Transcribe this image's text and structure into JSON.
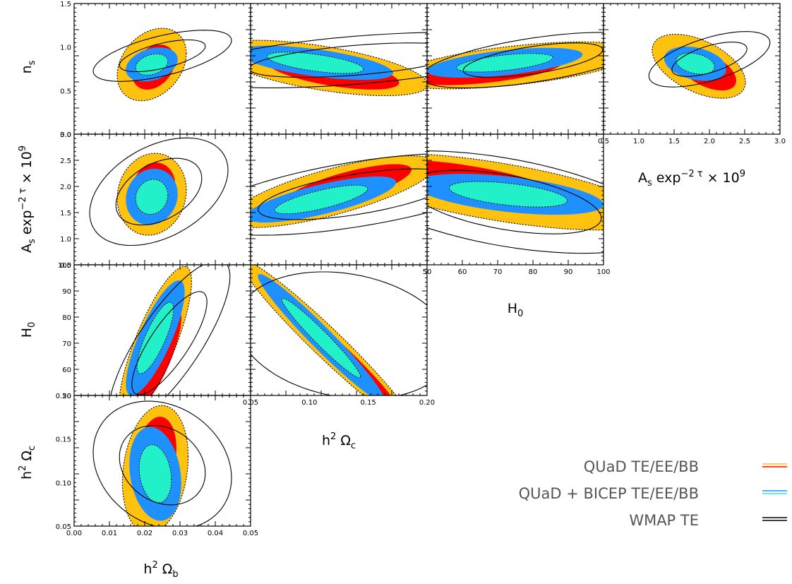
{
  "chart_data": {
    "type": "contour",
    "colors": {
      "quad_outer": "#FFC20E",
      "quad_inner": "#FF0000",
      "combined_outer": "#1E90FF",
      "combined_inner": "#22F0C8",
      "wmap": "#000000"
    },
    "legend": {
      "placement": "bottom-right",
      "entries": [
        {
          "label": "QUaD TE/EE/BB",
          "colors": [
            "#FFC20E",
            "#FF0000"
          ]
        },
        {
          "label": "QUaD + BICEP TE/EE/BB",
          "colors": [
            "#1E90FF",
            "#22F0C8"
          ]
        },
        {
          "label": "WMAP TE",
          "colors": [
            "#000000",
            "#000000"
          ]
        }
      ]
    },
    "parameters": {
      "ob": {
        "label_main": "h",
        "label_sup": "2",
        "label_greek": "Ω",
        "label_sub": "b",
        "range": [
          0.0,
          0.05
        ],
        "ticks": [
          "0.00",
          "0.01",
          "0.02",
          "0.03",
          "0.04",
          "0.05"
        ]
      },
      "oc": {
        "label_main": "h",
        "label_sup": "2",
        "label_greek": "Ω",
        "label_sub": "c",
        "range": [
          0.05,
          0.2
        ],
        "ticks": [
          "0.05",
          "0.10",
          "0.15",
          "0.20"
        ]
      },
      "h0": {
        "label_main": "H",
        "label_sub": "0",
        "range": [
          50,
          100
        ],
        "ticks": [
          "50",
          "60",
          "70",
          "80",
          "90",
          "100"
        ]
      },
      "as": {
        "label_main": "A",
        "label_sub": "s",
        "label_rest": " exp",
        "label_sup": "−2 τ",
        "label_tail": " × 10",
        "label_sup2": "9",
        "range": [
          0.5,
          3.0
        ],
        "ticks": [
          "0.5",
          "1.0",
          "1.5",
          "2.0",
          "2.5",
          "3.0"
        ]
      },
      "ns": {
        "label_main": "n",
        "label_sub": "s",
        "range": [
          0.0,
          1.5
        ],
        "ticks": [
          "0.0",
          "0.5",
          "1.0",
          "1.5"
        ]
      }
    },
    "panels": [
      {
        "id": "ns-ob",
        "x": "ob",
        "y": "ns",
        "quad": {
          "center": [
            0.022,
            0.8
          ],
          "sx": 0.004,
          "sy": 0.17,
          "rho": 0.3,
          "shift68": [
            0.0005,
            -0.03
          ]
        },
        "combined": {
          "center": [
            0.022,
            0.8
          ],
          "sx": 0.003,
          "sy": 0.08,
          "rho": 0.3
        },
        "wmap": {
          "center": [
            0.025,
            0.9
          ],
          "sx": 0.008,
          "sy": 0.12,
          "rho": 0.6
        }
      },
      {
        "id": "ns-oc",
        "x": "oc",
        "y": "ns",
        "quad": {
          "center": [
            0.11,
            0.76
          ],
          "sx": 0.037,
          "sy": 0.13,
          "rho": -0.6,
          "shift68": [
            0.01,
            -0.05
          ]
        },
        "combined": {
          "center": [
            0.105,
            0.82
          ],
          "sx": 0.027,
          "sy": 0.08,
          "rho": -0.6
        },
        "wmap": {
          "center": [
            0.14,
            0.85
          ],
          "sx": 0.06,
          "sy": 0.13,
          "rho": 0.5
        }
      },
      {
        "id": "ns-h0",
        "x": "h0",
        "y": "ns",
        "quad": {
          "center": [
            75,
            0.79
          ],
          "sx": 14,
          "sy": 0.11,
          "rho": 0.55,
          "shift68": [
            -8,
            -0.06
          ]
        },
        "combined": {
          "center": [
            72,
            0.82
          ],
          "sx": 9,
          "sy": 0.07,
          "rho": 0.55
        },
        "wmap": {
          "center": [
            80,
            0.85
          ],
          "sx": 13,
          "sy": 0.13,
          "rho": 0.6
        }
      },
      {
        "id": "ns-as",
        "x": "as",
        "y": "ns",
        "quad": {
          "center": [
            1.85,
            0.78
          ],
          "sx": 0.27,
          "sy": 0.15,
          "rho": -0.5,
          "shift68": [
            0.12,
            -0.05
          ]
        },
        "combined": {
          "center": [
            1.8,
            0.81
          ],
          "sx": 0.18,
          "sy": 0.08,
          "rho": -0.3
        },
        "wmap": {
          "center": [
            2.0,
            0.86
          ],
          "sx": 0.35,
          "sy": 0.13,
          "rho": 0.6
        }
      },
      {
        "id": "as-ob",
        "x": "ob",
        "y": "as",
        "quad": {
          "center": [
            0.022,
            1.85
          ],
          "sx": 0.004,
          "sy": 0.32,
          "rho": 0.1,
          "shift68": [
            0.0006,
            0.12
          ]
        },
        "combined": {
          "center": [
            0.022,
            1.8
          ],
          "sx": 0.003,
          "sy": 0.22,
          "rho": 0.1
        },
        "wmap": {
          "center": [
            0.024,
            1.9
          ],
          "sx": 0.008,
          "sy": 0.42,
          "rho": 0.4
        }
      },
      {
        "id": "as-oc",
        "x": "oc",
        "y": "as",
        "quad": {
          "center": [
            0.12,
            1.9
          ],
          "sx": 0.036,
          "sy": 0.28,
          "rho": 0.75,
          "shift68": [
            0.012,
            0.1
          ]
        },
        "combined": {
          "center": [
            0.11,
            1.75
          ],
          "sx": 0.026,
          "sy": 0.18,
          "rho": 0.75
        },
        "wmap": {
          "center": [
            0.14,
            1.85
          ],
          "sx": 0.055,
          "sy": 0.32,
          "rho": 0.6
        }
      },
      {
        "id": "as-h0",
        "x": "h0",
        "y": "as",
        "quad": {
          "center": [
            70,
            1.9
          ],
          "sx": 18,
          "sy": 0.3,
          "rho": -0.65,
          "shift68": [
            -8,
            0.15
          ]
        },
        "combined": {
          "center": [
            73,
            1.85
          ],
          "sx": 11,
          "sy": 0.16,
          "rho": -0.5
        },
        "wmap": {
          "center": [
            72,
            1.7
          ],
          "sx": 18,
          "sy": 0.4,
          "rho": -0.5
        }
      },
      {
        "id": "h0-ob",
        "x": "ob",
        "y": "h0",
        "quad": {
          "center": [
            0.023,
            70
          ],
          "sx": 0.0042,
          "sy": 12,
          "rho": 0.8,
          "shift68": [
            0.001,
            -5
          ]
        },
        "combined": {
          "center": [
            0.023,
            72
          ],
          "sx": 0.0034,
          "sy": 9,
          "rho": 0.8
        },
        "wmap": {
          "center": [
            0.027,
            70
          ],
          "sx": 0.007,
          "sy": 13,
          "rho": 0.8
        }
      },
      {
        "id": "h0-oc",
        "x": "oc",
        "y": "h0",
        "quad": {
          "center": [
            0.115,
            70
          ],
          "sx": 0.03,
          "sy": 13,
          "rho": -0.97,
          "shift68": [
            0.015,
            -6
          ]
        },
        "combined": {
          "center": [
            0.11,
            72
          ],
          "sx": 0.022,
          "sy": 10,
          "rho": -0.97
        },
        "wmap": {
          "center": [
            0.13,
            73
          ],
          "sx": 0.06,
          "sy": 16,
          "rho": -0.2
        }
      },
      {
        "id": "oc-ob",
        "x": "ob",
        "y": "oc",
        "quad": {
          "center": [
            0.023,
            0.115
          ],
          "sx": 0.0038,
          "sy": 0.03,
          "rho": 0.2,
          "shift68": [
            0.0002,
            0.015
          ]
        },
        "combined": {
          "center": [
            0.023,
            0.11
          ],
          "sx": 0.003,
          "sy": 0.022,
          "rho": -0.2
        },
        "wmap": {
          "center": [
            0.025,
            0.12
          ],
          "sx": 0.008,
          "sy": 0.03,
          "rho": -0.2
        }
      }
    ]
  }
}
